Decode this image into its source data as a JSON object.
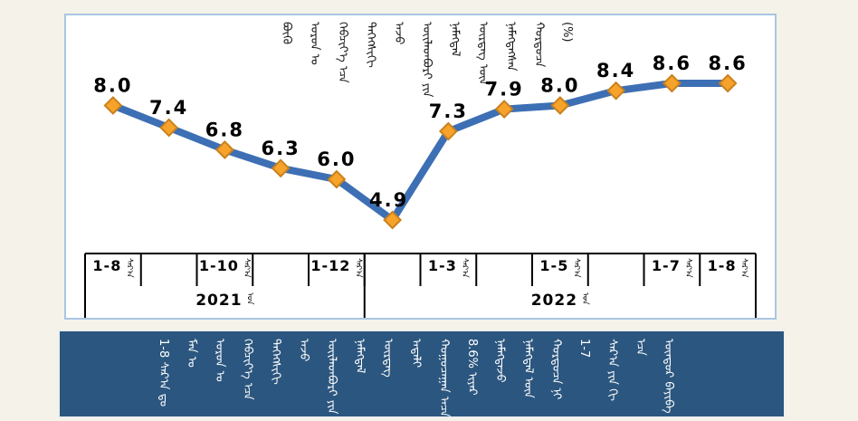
{
  "page": {
    "background": "#F5F2E9"
  },
  "chart_card": {
    "background": "#FFFFFF",
    "border_color": "#A9C5E4"
  },
  "chart_data": {
    "type": "line",
    "title_vertical_words": [
      "ᠪᠦᠬᠦ",
      "ᠣᠷᠣᠨ ᠤ",
      "ᠬᠡᠪᠴᠢᠶ᠎ᠡ ᠡᠴᠡ",
      "ᠳᠡᠭᠡᠭᠰᠢᠬᠢ",
      "ᠠᠵᠤ",
      "ᠦᠢᠯᠡᠳᠪᠦᠷᠢ ᠶᠢᠨ",
      "ᠨᠡᠮᠡᠭᠳᠡᠯ",
      "ᠥᠷᠲᠡᠭ ᠦᠨ",
      "ᠨᠡᠮᠡᠭᠳᠡᠭᠰᠡᠨ",
      "ᠬᠤᠷᠳᠤᠴᠠ"
    ],
    "title_unit": "(%)",
    "categories": [
      "2021-08",
      "2021-09",
      "2021-10",
      "2021-11",
      "2021-12",
      "2022-02",
      "2022-03",
      "2022-04",
      "2022-05",
      "2022-06",
      "2022-07",
      "2022-08"
    ],
    "values": [
      8.0,
      7.4,
      6.8,
      6.3,
      6.0,
      4.9,
      7.3,
      7.9,
      8.0,
      8.4,
      8.6,
      8.6
    ],
    "value_labels": [
      "8.0",
      "7.4",
      "6.8",
      "6.3",
      "6.0",
      "4.9",
      "7.3",
      "7.9",
      "8.0",
      "8.4",
      "8.6",
      "8.6"
    ],
    "x_axis": {
      "month_tick_labels": [
        {
          "cell": 0,
          "label": "1-8"
        },
        {
          "cell": 2,
          "label": "1-10"
        },
        {
          "cell": 4,
          "label": "1-12"
        },
        {
          "cell": 6,
          "label": "1-3"
        },
        {
          "cell": 8,
          "label": "1-5"
        },
        {
          "cell": 10,
          "label": "1-7"
        },
        {
          "cell": 11,
          "label": "1-8"
        }
      ],
      "month_suffix": "ᠰᠠᠷ᠎ᠠ",
      "year_groups": [
        {
          "label": "2021",
          "cells": 5
        },
        {
          "label": "2022",
          "cells": 7
        }
      ],
      "year_suffix": "ᠣᠨ"
    },
    "ylim": [
      4.5,
      9.0
    ],
    "grid": false,
    "legend": false,
    "colors": {
      "line": "#3D6FB4",
      "marker_fill": "#F7A32B",
      "marker_stroke": "#C9811C",
      "value_label": "#000000",
      "axis": "#000000"
    }
  },
  "banner": {
    "background": "#2B567F",
    "text_color": "#FFFFFF",
    "vertical_words": [
      "1-8 ᠰᠠᠷ᠎ᠠ ᠳᠤ",
      "ᠮᠠᠨ ᠤ",
      "ᠣᠷᠣᠨ ᠤ",
      "ᠬᠡᠪᠴᠢᠶ᠎ᠡ ᠡᠴᠡ",
      "ᠳᠡᠭᠡᠭᠰᠢᠬᠢ",
      "ᠠᠵᠤ",
      "ᠦᠢᠯᠡᠳᠪᠦᠷᠢ ᠶᠢᠨ",
      "ᠨᠡᠮᠡᠭᠳᠡᠯ",
      "ᠥᠷᠲᠡᠭ",
      "ᠠᠳᠠᠯᠢ",
      "ᠬᠤᠭᠤᠴᠠᠭᠠᠨ ᠠᠴᠠ",
      "8.6% ᠢᠶᠠᠷ",
      "ᠨᠡᠮᠡᠭᠳᠡᠵᠦ",
      "ᠨᠡᠮᠡᠭᠳᠡᠯ ᠦᠨ",
      "ᠬᠤᠷᠳᠤᠴᠠ ᠨᠢ",
      "1-7",
      "ᠰᠠᠷ᠎ᠠ ᠶᠢᠨ ᠬᠢ",
      "ᠡᠴᠡ",
      "ᠥᠨᠳᠥᠷ ᠪᠠᠶᠢᠪᠠ"
    ]
  }
}
